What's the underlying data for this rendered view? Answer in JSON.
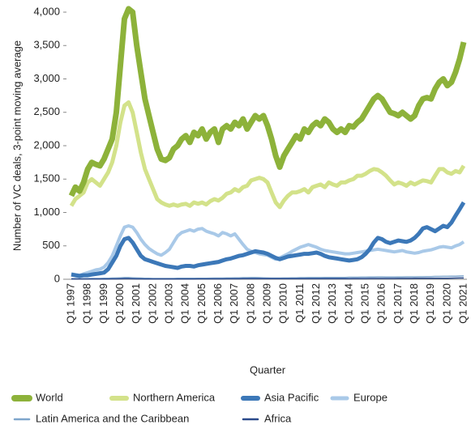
{
  "chart_data": {
    "type": "line",
    "y_label": "Number of VC deals, 3-point moving average",
    "x_label": "Quarter",
    "categories": [
      "Q1 1997",
      null,
      null,
      null,
      "Q1 1998",
      null,
      null,
      null,
      "Q1 1999",
      null,
      null,
      null,
      "Q1 2000",
      null,
      null,
      null,
      "Q1 2001",
      null,
      null,
      null,
      "Q1 2002",
      null,
      null,
      null,
      "Q1 2003",
      null,
      null,
      null,
      "Q1 2004",
      null,
      null,
      null,
      "Q1 2005",
      null,
      null,
      null,
      "Q1 2006",
      null,
      null,
      null,
      "Q1 2007",
      null,
      null,
      null,
      "Q1 2008",
      null,
      null,
      null,
      "Q1 2009",
      null,
      null,
      null,
      "Q1 2010",
      null,
      null,
      null,
      "Q1 2011",
      null,
      null,
      null,
      "Q1 2012",
      null,
      null,
      null,
      "Q1 2013",
      null,
      null,
      null,
      "Q1 2014",
      null,
      null,
      null,
      "Q1 2015",
      null,
      null,
      null,
      "Q1 2016",
      null,
      null,
      null,
      "Q1 2017",
      null,
      null,
      null,
      "Q1 2018",
      null,
      null,
      null,
      "Q1 2019",
      null,
      null,
      null,
      "Q1 2020",
      null,
      null,
      null,
      "Q1 2021"
    ],
    "ylim": [
      0,
      4000
    ],
    "yticks": [
      0,
      500,
      {
        "value": 1000,
        "label": "1,000"
      },
      {
        "value": 1500,
        "label": "1,500"
      },
      {
        "value": 2000,
        "label": "2,000"
      },
      {
        "value": 2500,
        "label": "2,500"
      },
      {
        "value": 3000,
        "label": "3,000"
      },
      {
        "value": 3500,
        "label": "3,500"
      },
      {
        "value": 4000,
        "label": "4,000"
      }
    ],
    "series": [
      {
        "name": "World",
        "color": "#8db23a",
        "values": [
          1250,
          1380,
          1320,
          1450,
          1650,
          1750,
          1720,
          1700,
          1800,
          1950,
          2100,
          2500,
          3200,
          3900,
          4050,
          4000,
          3500,
          3100,
          2700,
          2450,
          2200,
          1950,
          1800,
          1780,
          1820,
          1950,
          2000,
          2100,
          2150,
          2050,
          2200,
          2150,
          2250,
          2100,
          2200,
          2250,
          2050,
          2250,
          2300,
          2250,
          2350,
          2300,
          2400,
          2250,
          2350,
          2450,
          2400,
          2450,
          2300,
          2100,
          1850,
          1680,
          1850,
          1950,
          2050,
          2150,
          2100,
          2250,
          2200,
          2300,
          2350,
          2300,
          2400,
          2350,
          2250,
          2200,
          2250,
          2200,
          2300,
          2280,
          2350,
          2400,
          2500,
          2600,
          2700,
          2750,
          2700,
          2600,
          2500,
          2480,
          2450,
          2500,
          2450,
          2400,
          2450,
          2600,
          2700,
          2720,
          2700,
          2850,
          2950,
          3000,
          2900,
          2950,
          3100,
          3300,
          3550
        ]
      },
      {
        "name": "Northern America",
        "color": "#d3e28a",
        "values": [
          1100,
          1200,
          1250,
          1300,
          1450,
          1500,
          1450,
          1400,
          1500,
          1600,
          1750,
          2000,
          2350,
          2600,
          2650,
          2500,
          2200,
          1900,
          1650,
          1500,
          1350,
          1200,
          1150,
          1120,
          1100,
          1120,
          1100,
          1120,
          1130,
          1100,
          1150,
          1130,
          1150,
          1120,
          1170,
          1200,
          1180,
          1220,
          1280,
          1300,
          1350,
          1320,
          1380,
          1400,
          1480,
          1500,
          1520,
          1500,
          1450,
          1300,
          1150,
          1080,
          1180,
          1250,
          1300,
          1300,
          1320,
          1350,
          1300,
          1380,
          1400,
          1420,
          1380,
          1450,
          1420,
          1400,
          1450,
          1450,
          1480,
          1500,
          1550,
          1550,
          1580,
          1620,
          1650,
          1640,
          1600,
          1550,
          1480,
          1420,
          1450,
          1430,
          1400,
          1450,
          1420,
          1450,
          1480,
          1470,
          1450,
          1550,
          1650,
          1650,
          1600,
          1580,
          1620,
          1600,
          1700
        ]
      },
      {
        "name": "Asia Pacific",
        "color": "#3c78b8",
        "values": [
          70,
          60,
          50,
          60,
          60,
          70,
          80,
          90,
          100,
          150,
          250,
          350,
          500,
          600,
          620,
          550,
          450,
          350,
          300,
          280,
          260,
          240,
          220,
          200,
          190,
          180,
          170,
          190,
          200,
          200,
          190,
          210,
          220,
          230,
          240,
          250,
          260,
          280,
          300,
          310,
          330,
          350,
          360,
          380,
          400,
          420,
          410,
          400,
          380,
          350,
          320,
          300,
          320,
          340,
          350,
          360,
          370,
          380,
          380,
          390,
          400,
          380,
          350,
          330,
          320,
          310,
          300,
          290,
          280,
          290,
          300,
          330,
          380,
          450,
          550,
          620,
          600,
          560,
          540,
          560,
          580,
          570,
          560,
          580,
          620,
          680,
          760,
          780,
          750,
          720,
          760,
          800,
          780,
          850,
          950,
          1050,
          1150
        ]
      },
      {
        "name": "Europe",
        "color": "#a9c9e8",
        "values": [
          80,
          70,
          60,
          80,
          100,
          120,
          140,
          150,
          180,
          250,
          350,
          500,
          650,
          780,
          800,
          780,
          700,
          600,
          520,
          460,
          420,
          380,
          360,
          400,
          450,
          550,
          650,
          700,
          720,
          740,
          720,
          750,
          760,
          720,
          700,
          680,
          650,
          700,
          680,
          650,
          680,
          600,
          520,
          450,
          420,
          400,
          380,
          370,
          360,
          330,
          300,
          320,
          350,
          380,
          420,
          450,
          480,
          500,
          520,
          500,
          480,
          450,
          430,
          420,
          410,
          400,
          390,
          380,
          380,
          390,
          400,
          410,
          420,
          430,
          440,
          450,
          440,
          430,
          420,
          410,
          420,
          430,
          410,
          400,
          390,
          400,
          420,
          430,
          440,
          460,
          480,
          490,
          480,
          470,
          500,
          520,
          560
        ]
      },
      {
        "name": "Latin America and the Caribbean",
        "color": "#7fa6cc",
        "values": [
          10,
          10,
          10,
          10,
          10,
          12,
          12,
          12,
          15,
          15,
          18,
          20,
          22,
          25,
          25,
          22,
          20,
          18,
          15,
          15,
          12,
          12,
          12,
          12,
          12,
          12,
          14,
          14,
          15,
          15,
          15,
          16,
          16,
          16,
          17,
          18,
          18,
          18,
          20,
          20,
          22,
          22,
          24,
          24,
          25,
          25,
          24,
          22,
          20,
          18,
          18,
          18,
          20,
          20,
          22,
          22,
          24,
          24,
          25,
          25,
          26,
          26,
          27,
          27,
          28,
          28,
          28,
          28,
          30,
          30,
          30,
          32,
          32,
          34,
          34,
          35,
          35,
          34,
          34,
          34,
          35,
          35,
          36,
          36,
          36,
          38,
          38,
          40,
          40,
          42,
          42,
          44,
          44,
          45,
          46,
          48,
          50
        ]
      },
      {
        "name": "Africa",
        "color": "#2b4b8c",
        "values": [
          5,
          5,
          5,
          5,
          5,
          5,
          5,
          5,
          5,
          5,
          6,
          6,
          7,
          8,
          8,
          7,
          6,
          6,
          5,
          5,
          5,
          5,
          5,
          5,
          5,
          5,
          5,
          5,
          5,
          5,
          5,
          6,
          6,
          6,
          6,
          6,
          6,
          6,
          7,
          7,
          7,
          7,
          8,
          8,
          8,
          8,
          8,
          8,
          8,
          8,
          8,
          8,
          8,
          8,
          8,
          9,
          9,
          9,
          9,
          9,
          10,
          10,
          10,
          10,
          10,
          10,
          10,
          10,
          10,
          11,
          11,
          11,
          11,
          12,
          12,
          12,
          12,
          12,
          12,
          12,
          13,
          13,
          13,
          13,
          14,
          14,
          14,
          15,
          15,
          15,
          16,
          16,
          16,
          17,
          18,
          19,
          20
        ]
      }
    ]
  }
}
